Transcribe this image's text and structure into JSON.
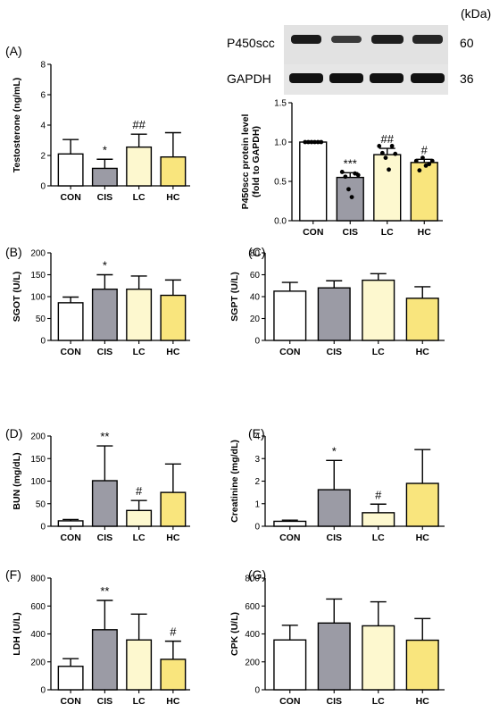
{
  "colors": {
    "CON": "#ffffff",
    "CIS": "#9b9ba5",
    "LC": "#fdf8cf",
    "HC": "#f9e57d"
  },
  "blot": {
    "unit_label": "(kDa)",
    "bands": [
      {
        "name": "P450scc",
        "kda": "60"
      },
      {
        "name": "GAPDH",
        "kda": "36"
      }
    ]
  },
  "chart_data": [
    {
      "id": "A",
      "panel_label": "(A)",
      "type": "bar",
      "categories": [
        "CON",
        "CIS",
        "LC",
        "HC"
      ],
      "values": [
        2.1,
        1.15,
        2.55,
        1.9
      ],
      "errors": [
        0.95,
        0.6,
        0.85,
        1.6
      ],
      "significance": [
        "",
        "*",
        "##",
        ""
      ],
      "ylabel": "Testosterone (ng/mL)",
      "ylim": [
        0,
        8
      ],
      "yticks": [
        0,
        2,
        4,
        6,
        8
      ]
    },
    {
      "id": "P450",
      "panel_label": "",
      "type": "bar",
      "categories": [
        "CON",
        "CIS",
        "LC",
        "HC"
      ],
      "values": [
        1.0,
        0.55,
        0.84,
        0.74
      ],
      "errors": [
        0.0,
        0.06,
        0.08,
        0.04
      ],
      "points": [
        [
          1.0,
          1.0,
          1.0,
          1.0,
          1.0,
          1.0
        ],
        [
          0.62,
          0.56,
          0.4,
          0.3,
          0.6,
          0.58
        ],
        [
          0.95,
          0.86,
          0.8,
          0.65,
          0.95,
          0.85
        ],
        [
          0.76,
          0.64,
          0.8,
          0.7,
          0.72,
          0.76
        ]
      ],
      "significance": [
        "",
        "***",
        "##",
        "#"
      ],
      "ylabel": "P450scc protein level (fold to GAPDH)",
      "ylim": [
        0,
        1.5
      ],
      "yticks": [
        0.0,
        0.5,
        1.0,
        1.5
      ]
    },
    {
      "id": "B",
      "panel_label": "(B)",
      "type": "bar",
      "categories": [
        "CON",
        "CIS",
        "LC",
        "HC"
      ],
      "values": [
        86,
        117,
        117,
        103
      ],
      "errors": [
        13,
        33,
        30,
        35
      ],
      "significance": [
        "",
        "*",
        "",
        ""
      ],
      "ylabel": "SGOT (U/L)",
      "ylim": [
        0,
        200
      ],
      "yticks": [
        0,
        50,
        100,
        150,
        200
      ]
    },
    {
      "id": "C",
      "panel_label": "(C)",
      "type": "bar",
      "categories": [
        "CON",
        "CIS",
        "LC",
        "HC"
      ],
      "values": [
        45,
        48,
        55,
        38.5
      ],
      "errors": [
        8,
        6.5,
        6,
        10.5
      ],
      "significance": [
        "",
        "",
        "",
        ""
      ],
      "ylabel": "SGPT (U/L)",
      "ylim": [
        0,
        80
      ],
      "yticks": [
        0,
        20,
        40,
        60,
        80
      ]
    },
    {
      "id": "D",
      "panel_label": "(D)",
      "type": "bar",
      "categories": [
        "CON",
        "CIS",
        "LC",
        "HC"
      ],
      "values": [
        12,
        101,
        35,
        75
      ],
      "errors": [
        3,
        77,
        22,
        63
      ],
      "significance": [
        "",
        "**",
        "#",
        ""
      ],
      "ylabel": "BUN (mg/dL)",
      "ylim": [
        0,
        200
      ],
      "yticks": [
        0,
        50,
        100,
        150,
        200
      ]
    },
    {
      "id": "E",
      "panel_label": "(E)",
      "type": "bar",
      "categories": [
        "CON",
        "CIS",
        "LC",
        "HC"
      ],
      "values": [
        0.22,
        1.62,
        0.6,
        1.9
      ],
      "errors": [
        0.05,
        1.3,
        0.38,
        1.5
      ],
      "significance": [
        "",
        "*",
        "#",
        ""
      ],
      "ylabel": "Creatinine (mg/dL)",
      "ylim": [
        0,
        4
      ],
      "yticks": [
        0,
        1,
        2,
        3,
        4
      ]
    },
    {
      "id": "F",
      "panel_label": "(F)",
      "type": "bar",
      "categories": [
        "CON",
        "CIS",
        "LC",
        "HC"
      ],
      "values": [
        168,
        430,
        357,
        218
      ],
      "errors": [
        55,
        210,
        185,
        130
      ],
      "significance": [
        "",
        "**",
        "",
        "#"
      ],
      "ylabel": "LDH (U/L)",
      "ylim": [
        0,
        800
      ],
      "yticks": [
        0,
        200,
        400,
        600,
        800
      ]
    },
    {
      "id": "G",
      "panel_label": "(G)",
      "type": "bar",
      "categories": [
        "CON",
        "CIS",
        "LC",
        "HC"
      ],
      "values": [
        357,
        478,
        458,
        355
      ],
      "errors": [
        105,
        172,
        172,
        155
      ],
      "significance": [
        "",
        "",
        "",
        ""
      ],
      "ylabel": "CPK (U/L)",
      "ylim": [
        0,
        800
      ],
      "yticks": [
        0,
        200,
        400,
        600,
        800
      ]
    }
  ]
}
